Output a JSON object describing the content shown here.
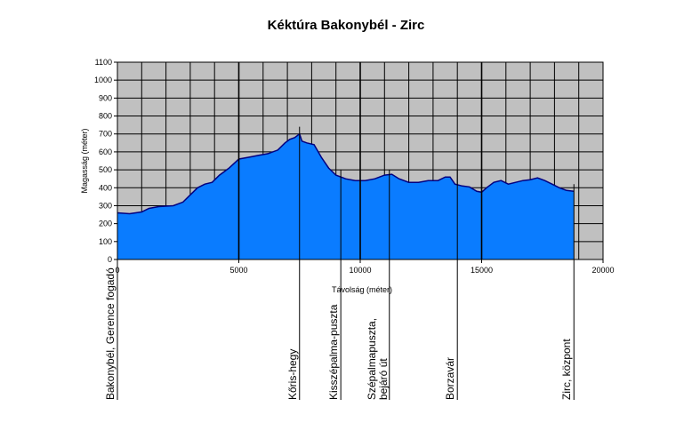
{
  "chart_data": {
    "type": "area",
    "title": "Kéktúra Bakonybél - Zirc",
    "xlabel": "Távolság (méter)",
    "ylabel": "Magasság (méter)",
    "xlim": [
      0,
      20000
    ],
    "ylim": [
      0,
      1100
    ],
    "x_ticks": [
      0,
      5000,
      10000,
      15000,
      20000
    ],
    "y_ticks": [
      0,
      100,
      200,
      300,
      400,
      500,
      600,
      700,
      800,
      900,
      1000,
      1100
    ],
    "grid": true,
    "colors": {
      "fill": "#0a7cff",
      "line": "#000080",
      "plot_background": "#c0c0c0",
      "grid": "#000000"
    },
    "series": [
      {
        "x": [
          0,
          500,
          1000,
          1300,
          1700,
          2300,
          2700,
          3000,
          3300,
          3600,
          3900,
          4200,
          4600,
          5000,
          5400,
          5800,
          6200,
          6600,
          6900,
          7100,
          7300,
          7500,
          7600,
          7800,
          8100,
          8400,
          8700,
          9000,
          9400,
          9800,
          10200,
          10600,
          11000,
          11300,
          11600,
          12000,
          12400,
          12800,
          13200,
          13500,
          13700,
          13900,
          14200,
          14500,
          14800,
          15000,
          15200,
          15500,
          15800,
          16100,
          16400,
          16700,
          17000,
          17300,
          17600,
          17900,
          18200,
          18500,
          18800
        ],
        "values": [
          260,
          255,
          265,
          285,
          295,
          300,
          320,
          360,
          400,
          420,
          430,
          470,
          510,
          560,
          570,
          580,
          590,
          610,
          650,
          670,
          680,
          700,
          660,
          650,
          640,
          570,
          510,
          470,
          450,
          440,
          440,
          450,
          470,
          475,
          450,
          430,
          430,
          440,
          440,
          460,
          460,
          420,
          410,
          405,
          380,
          375,
          400,
          430,
          440,
          420,
          430,
          440,
          445,
          455,
          440,
          420,
          400,
          385,
          380
        ]
      }
    ],
    "waypoints": [
      {
        "x": 0,
        "label": "Bakonybél, Gerence fogadó"
      },
      {
        "x": 7500,
        "label": "Kőris-hegy"
      },
      {
        "x": 9200,
        "label": "Kisszépalma-puszta"
      },
      {
        "x": 11200,
        "label": "Szépalmapuszta, bejáró út"
      },
      {
        "x": 14000,
        "label": "Borzavár"
      },
      {
        "x": 18800,
        "label": "Zirc, központ"
      }
    ],
    "waypoint_lines": [
      "Szépalmapuszta,",
      "bejáró út"
    ]
  }
}
